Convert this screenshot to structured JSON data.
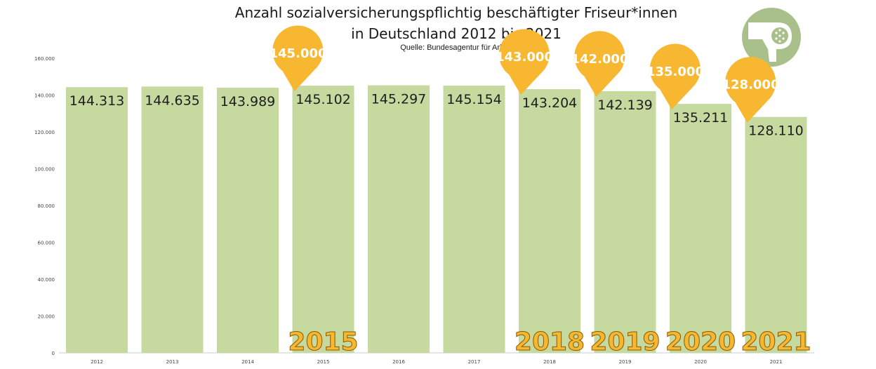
{
  "chart_data": {
    "type": "bar",
    "title": "Anzahl sozialversicherungspflichtig beschäftigter Friseur*innen",
    "title_line2": "in Deutschland 2012 bis 2021",
    "subtitle": "Quelle: Bundesagentur für Arbeit",
    "categories": [
      "2012",
      "2013",
      "2014",
      "2015",
      "2016",
      "2017",
      "2018",
      "2019",
      "2020",
      "2021"
    ],
    "values": [
      144313,
      144635,
      143989,
      145102,
      145297,
      145154,
      143204,
      142139,
      135211,
      128110
    ],
    "data_labels": [
      "144.313",
      "144.635",
      "143.989",
      "145.102",
      "145.297",
      "145.154",
      "143.204",
      "142.139",
      "135.211",
      "128.110"
    ],
    "y_ticks": [
      "0",
      "20.000",
      "40.000",
      "60.000",
      "80.000",
      "100.000",
      "120.000",
      "140.000",
      "160.000"
    ],
    "ylim": [
      0,
      160000
    ],
    "grid": false,
    "bar_color": "#c6d99f",
    "callout_color": "#f7b731",
    "callouts": [
      {
        "year": "2015",
        "forecast_label": "145.000"
      },
      {
        "year": "2018",
        "forecast_label": "143.000"
      },
      {
        "year": "2019",
        "forecast_label": "142.000"
      },
      {
        "year": "2020",
        "forecast_label": "135.000"
      },
      {
        "year": "2021",
        "forecast_label": "128.000"
      }
    ]
  },
  "logo": {
    "icon": "hair-dryer-icon",
    "bg_color": "#a9c08a"
  }
}
